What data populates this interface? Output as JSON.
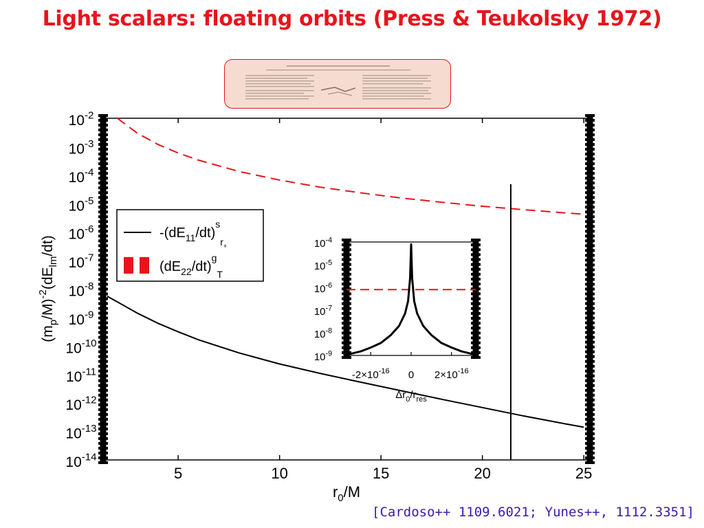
{
  "slide": {
    "title": "Light scalars: floating orbits (Press & Teukolsky 1972)",
    "citation": "[Cardoso++ 1109.6021; Yunes++, 1112.3351]"
  },
  "colors": {
    "title": "#e8141c",
    "citation": "#3a1ab0",
    "dashed_series": "#e8141c",
    "solid_series": "#000000",
    "thumbnail_bg": "#f6dcd0"
  },
  "chart_data": [
    {
      "type": "line",
      "name": "main",
      "xlabel_base": "r",
      "xlabel_sub": "0",
      "xlabel_rest": "/M",
      "ylabel": "(m_p/M)^-2 (dE_lm/dt)",
      "xlim": [
        1.3,
        25.3
      ],
      "ylim_exp": [
        -14,
        -2
      ],
      "yscale": "log",
      "x_ticks": [
        5,
        10,
        15,
        20,
        25
      ],
      "y_tick_exponents": [
        -2,
        -3,
        -4,
        -5,
        -6,
        -7,
        -8,
        -9,
        -10,
        -11,
        -12,
        -13,
        -14
      ],
      "vertical_line_x": 21.4,
      "legend": {
        "position": "upper-left",
        "entries": [
          {
            "style": "solid",
            "label": "-(dE11/dt)^s_r+"
          },
          {
            "style": "dashed",
            "label": "(dE22/dt)^g_T"
          }
        ]
      },
      "series": [
        {
          "style": "dashed",
          "x": [
            2.0,
            3.0,
            4.0,
            5.0,
            6.0,
            8.0,
            10.0,
            12.0,
            14.0,
            16.0,
            18.0,
            20.0,
            22.0,
            24.0,
            25.0
          ],
          "log10_y": [
            -2.0,
            -2.53,
            -2.92,
            -3.22,
            -3.47,
            -3.87,
            -4.17,
            -4.42,
            -4.62,
            -4.8,
            -4.95,
            -5.09,
            -5.21,
            -5.32,
            -5.37
          ]
        },
        {
          "style": "solid",
          "x": [
            1.5,
            2.0,
            3.0,
            4.0,
            5.0,
            6.0,
            8.0,
            10.0,
            12.0,
            14.0,
            16.0,
            18.0,
            20.0,
            22.0,
            24.0,
            25.0
          ],
          "log10_y": [
            -8.25,
            -8.45,
            -8.85,
            -9.2,
            -9.5,
            -9.78,
            -10.24,
            -10.63,
            -10.96,
            -11.27,
            -11.57,
            -11.87,
            -12.16,
            -12.45,
            -12.72,
            -12.85
          ]
        }
      ]
    },
    {
      "type": "line",
      "name": "inset",
      "xlabel_base": "Δr",
      "xlabel_sub": "0",
      "xlabel_mid": "/r",
      "xlabel_sub2": "res",
      "xlim": [
        -3.2e-16,
        3.2e-16
      ],
      "ylim_exp": [
        -9,
        -4
      ],
      "yscale": "log",
      "x_tick_labels": [
        "-2×10^-16",
        "0",
        "2×10^-16"
      ],
      "x_tick_values": [
        -2e-16,
        0,
        2e-16
      ],
      "y_tick_exponents": [
        -4,
        -5,
        -6,
        -7,
        -8,
        -9
      ],
      "series": [
        {
          "style": "dashed",
          "x": [
            -3.2e-16,
            3.2e-16
          ],
          "log10_y": [
            -6.1,
            -6.1
          ]
        },
        {
          "style": "solid",
          "x": [
            -3.1e-16,
            -2.5e-16,
            -2e-16,
            -1.5e-16,
            -1e-16,
            -6e-17,
            -3e-17,
            -1.5e-17,
            -5e-18,
            0.0,
            5e-18,
            1.5e-17,
            3e-17,
            6e-17,
            1e-16,
            1.5e-16,
            2e-16,
            2.5e-16,
            3.1e-16
          ],
          "log10_y": [
            -8.95,
            -8.82,
            -8.65,
            -8.45,
            -8.1,
            -7.7,
            -7.15,
            -6.6,
            -5.6,
            -4.1,
            -5.6,
            -6.6,
            -7.15,
            -7.7,
            -8.1,
            -8.45,
            -8.65,
            -8.82,
            -8.95
          ]
        }
      ]
    }
  ]
}
